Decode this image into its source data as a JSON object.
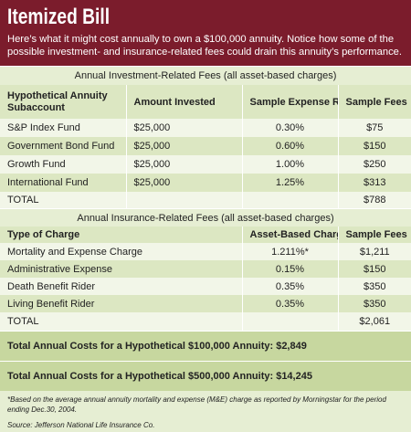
{
  "header": {
    "title": "Itemized Bill",
    "subtitle": "Here’s what it might cost annually to own a $100,000 annuity. Notice how some of the possible investment- and insurance-related fees could drain this annuity’s performance."
  },
  "investment_table": {
    "caption": "Annual Investment-Related Fees (all asset-based charges)",
    "columns": [
      "Hypothetical Annuity Subaccount",
      "Amount Invested",
      "Sample Expense Ratios",
      "Sample Fees"
    ],
    "rows": [
      [
        "S&P Index Fund",
        "$25,000",
        "0.30%",
        "$75"
      ],
      [
        "Government Bond Fund",
        "$25,000",
        "0.60%",
        "$150"
      ],
      [
        "Growth Fund",
        "$25,000",
        "1.00%",
        "$250"
      ],
      [
        "International Fund",
        "$25,000",
        "1.25%",
        "$313"
      ]
    ],
    "total": {
      "label": "TOTAL",
      "value": "$788"
    }
  },
  "insurance_table": {
    "caption": "Annual Insurance-Related Fees (all asset-based charges)",
    "columns": [
      "Type of Charge",
      "Asset-Based Charge",
      "Sample Fees"
    ],
    "rows": [
      [
        "Mortality and Expense Charge",
        "1.211%*",
        "$1,211"
      ],
      [
        "Administrative Expense",
        "0.15%",
        "$150"
      ],
      [
        "Death Benefit Rider",
        "0.35%",
        "$350"
      ],
      [
        "Living Benefit Rider",
        "0.35%",
        "$350"
      ]
    ],
    "total": {
      "label": "TOTAL",
      "value": "$2,061"
    }
  },
  "summary": [
    "Total Annual Costs for a Hypothetical $100,000 Annuity: $2,849",
    "Total Annual Costs for a Hypothetical $500,000 Annuity: $14,245"
  ],
  "footnote": "*Based on the average annual annuity mortality and expense (M&E) charge as reported by Morningstar for the period ending Dec.30, 2004.",
  "source": "Source: Jefferson National Life Insurance Co."
}
